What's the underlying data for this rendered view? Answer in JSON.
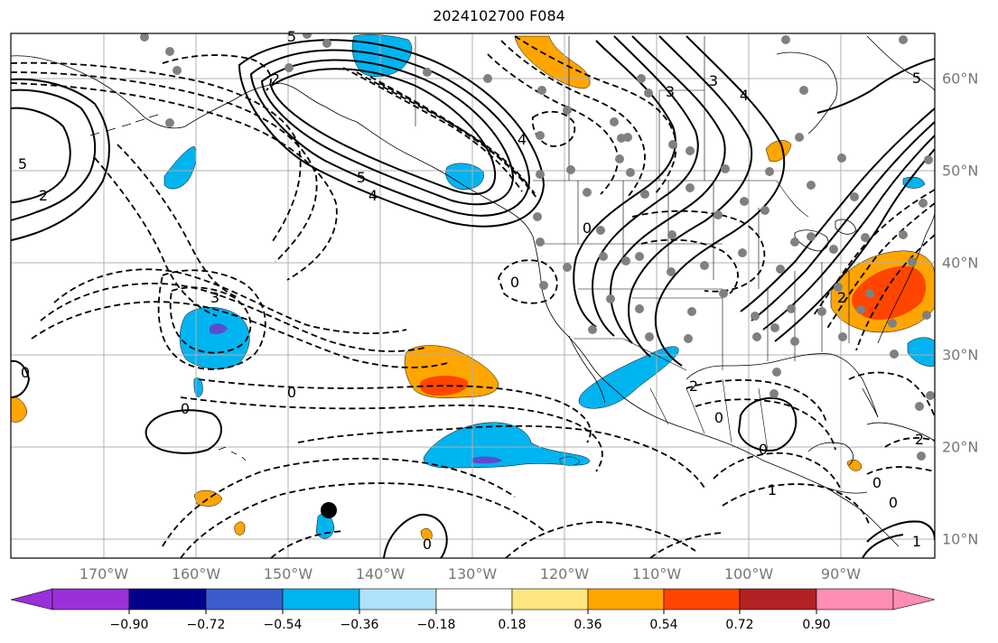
{
  "title": "2024102700 F084",
  "lon_labels": [
    "170°W",
    "160°W",
    "150°W",
    "140°W",
    "130°W",
    "120°W",
    "110°W",
    "100°W",
    "90°W"
  ],
  "lat_labels": [
    "60°N",
    "50°N",
    "40°N",
    "30°N",
    "20°N",
    "10°N"
  ],
  "colorbar": {
    "ticks": [
      "−0.90",
      "−0.72",
      "−0.54",
      "−0.36",
      "−0.18",
      "0.18",
      "0.36",
      "0.54",
      "0.72",
      "0.90"
    ],
    "colors": [
      "#9b30d8",
      "#00008b",
      "#3a5ccc",
      "#00b4f0",
      "#aee2fa",
      "#ffffff",
      "#ffe680",
      "#ffa500",
      "#ff4500",
      "#b22222",
      "#ff8cb4"
    ]
  },
  "contour_labels": [
    "5",
    "2",
    "0",
    "3",
    "4",
    "0",
    "0",
    "0",
    "0",
    "0",
    "5",
    "2",
    "4",
    "3",
    "4",
    "5",
    "2",
    "0",
    "0",
    "1",
    "0",
    "2",
    "0",
    "1",
    "5",
    "3",
    "2"
  ],
  "colors": {
    "grid": "#b0b0b0",
    "coast": "#000000",
    "station": "#808080"
  }
}
